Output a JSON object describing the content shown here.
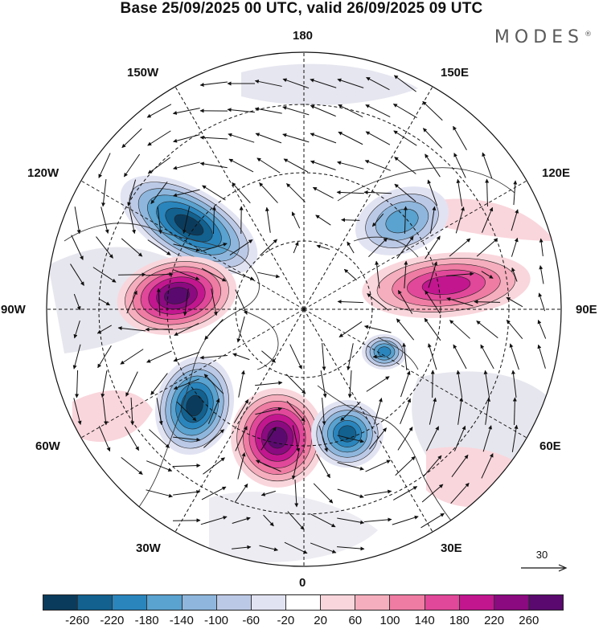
{
  "title": "Base 25/09/2025 00 UTC, valid 26/09/2025 09 UTC",
  "brand": {
    "name": "MODES",
    "mark": "®"
  },
  "longitude_labels": {
    "lon_180": "180",
    "lon_150e": "150E",
    "lon_120e": "120E",
    "lon_90e": "90E",
    "lon_60e": "60E",
    "lon_30e": "30E",
    "lon_0": "0",
    "lon_30w": "30W",
    "lon_60w": "60W",
    "lon_90w": "90W",
    "lon_120w": "120W",
    "lon_150w": "150W"
  },
  "reference_vector": {
    "label": "30"
  },
  "colorbar": {
    "ticks": [
      "-260",
      "-220",
      "-180",
      "-140",
      "-100",
      "-60",
      "-20",
      "20",
      "60",
      "100",
      "140",
      "180",
      "220",
      "260"
    ],
    "colors": [
      "#0b3b5c",
      "#12618f",
      "#2a85bd",
      "#5aa2cf",
      "#8fb7dd",
      "#bcc9e6",
      "#e2e3f2",
      "#ffffff",
      "#f9d6dc",
      "#f5aebd",
      "#ee7ca3",
      "#e14899",
      "#c2168f",
      "#8b0a80",
      "#5a0a6e"
    ]
  },
  "anomaly_centers": [
    {
      "id": "neg-pacific",
      "sign": "negative",
      "level": 260
    },
    {
      "id": "pos-canada",
      "sign": "positive",
      "level": 220
    },
    {
      "id": "neg-atlantic",
      "sign": "negative",
      "level": 220
    },
    {
      "id": "pos-north-atlantic",
      "sign": "positive",
      "level": 220
    },
    {
      "id": "neg-europe",
      "sign": "negative",
      "level": 180
    },
    {
      "id": "pos-siberia",
      "sign": "positive",
      "level": 140
    },
    {
      "id": "neg-kara",
      "sign": "negative",
      "level": 140
    },
    {
      "id": "neg-east-siberia",
      "sign": "negative",
      "level": 100
    }
  ]
}
